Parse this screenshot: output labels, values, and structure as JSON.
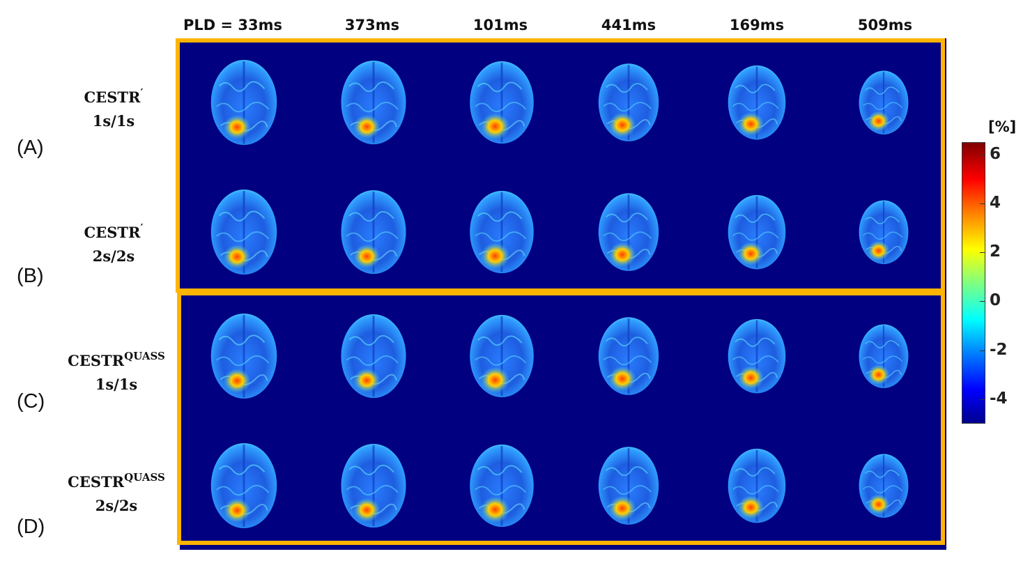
{
  "columns": [
    "PLD = 33ms",
    "373ms",
    "101ms",
    "441ms",
    "169ms",
    "509ms"
  ],
  "panels": [
    "(A)",
    "(B)",
    "(C)",
    "(D)"
  ],
  "rows": [
    {
      "name": "CESTR",
      "superscript": "′",
      "sub": "1s/1s"
    },
    {
      "name": "CESTR",
      "superscript": "′",
      "sub": "2s/2s"
    },
    {
      "name": "CESTR",
      "superscript": "QUASS",
      "sub": "1s/1s"
    },
    {
      "name": "CESTR",
      "superscript": "QUASS",
      "sub": "2s/2s"
    }
  ],
  "colorbar": {
    "unit": "[%]",
    "range": [
      -5,
      6.5
    ],
    "ticks": [
      "6",
      "4",
      "2",
      "0",
      "-2",
      "-4"
    ],
    "colormap": "jet"
  },
  "colors": {
    "background": "#000080",
    "frame": "#ffb400"
  }
}
